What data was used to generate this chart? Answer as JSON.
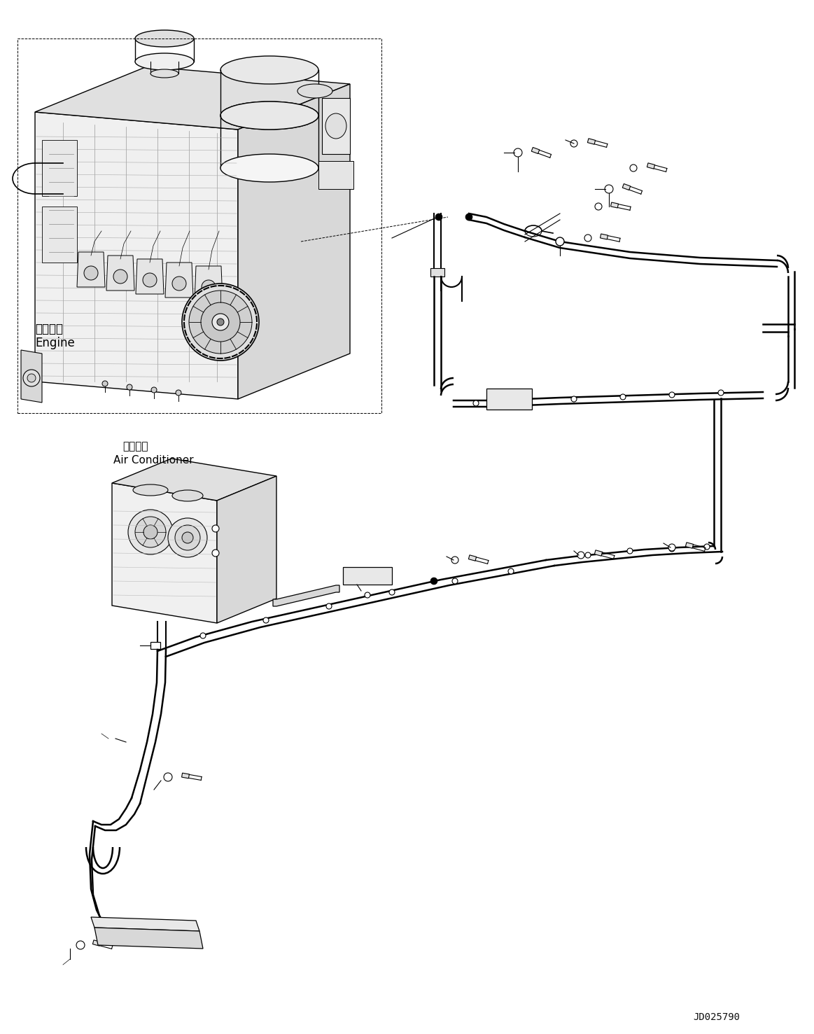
{
  "figure_id": "JD025790",
  "background_color": "#ffffff",
  "line_color": "#000000",
  "engine_label_jp": "エンジン",
  "engine_label_en": "Engine",
  "ac_label_jp": "エアコン",
  "ac_label_en": "Air Conditioner",
  "fig_width": 11.63,
  "fig_height": 14.77,
  "dpi": 100
}
